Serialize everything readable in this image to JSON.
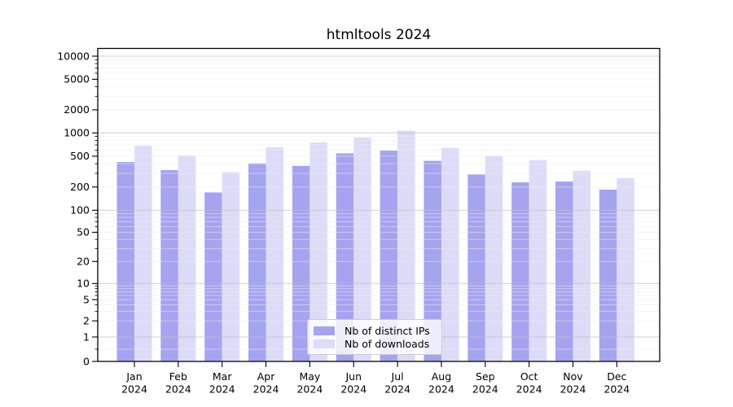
{
  "chart_data": {
    "type": "bar",
    "title": "htmltools 2024",
    "categories": [
      "Jan 2024",
      "Feb 2024",
      "Mar 2024",
      "Apr 2024",
      "May 2024",
      "Jun 2024",
      "Jul 2024",
      "Aug 2024",
      "Sep 2024",
      "Oct 2024",
      "Nov 2024",
      "Dec 2024"
    ],
    "series": [
      {
        "name": "Nb of distinct IPs",
        "color": "#a4a4ef",
        "values": [
          420,
          330,
          170,
          405,
          375,
          545,
          590,
          435,
          290,
          230,
          235,
          185
        ]
      },
      {
        "name": "Nb of downloads",
        "color": "#dcdcf9",
        "values": [
          680,
          510,
          310,
          650,
          755,
          870,
          1070,
          640,
          505,
          445,
          325,
          260
        ]
      }
    ],
    "yscale": "symlog",
    "y_ticks": [
      0,
      1,
      2,
      5,
      10,
      20,
      50,
      100,
      200,
      500,
      1000,
      2000,
      5000,
      10000
    ],
    "ylim": [
      0,
      13000
    ],
    "grid": true,
    "legend_position": "lower center",
    "axis_color": "#000000",
    "major_grid_color": "#bfbfbf",
    "minor_grid_color": "#ececec"
  }
}
